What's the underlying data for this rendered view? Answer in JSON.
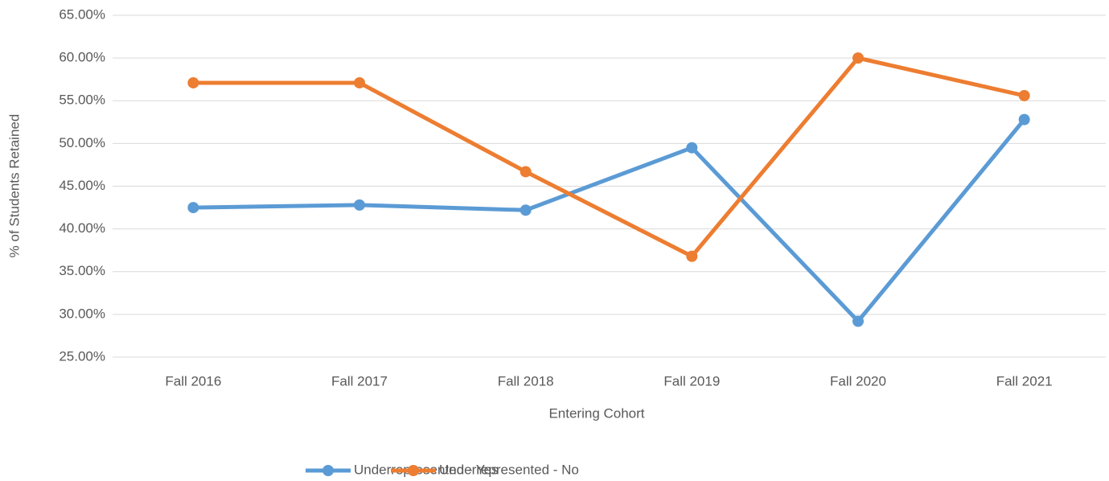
{
  "chart_data": {
    "type": "line",
    "x_label": "Entering Cohort",
    "y_label": "% of Students Retained",
    "categories": [
      "Fall 2016",
      "Fall 2017",
      "Fall 2018",
      "Fall 2019",
      "Fall 2020",
      "Fall 2021"
    ],
    "series": [
      {
        "name": "Underrepresented - Yes",
        "color": "#5b9bd5",
        "values": [
          42.5,
          42.8,
          42.2,
          49.5,
          29.2,
          52.8
        ]
      },
      {
        "name": "Underrepresented - No",
        "color": "#ed7d31",
        "values": [
          57.1,
          57.1,
          46.7,
          36.8,
          60.0,
          55.6
        ]
      }
    ],
    "ylim": [
      25,
      65
    ],
    "yticks": [
      {
        "value": 25,
        "label": "25.00%"
      },
      {
        "value": 30,
        "label": "30.00%"
      },
      {
        "value": 35,
        "label": "35.00%"
      },
      {
        "value": 40,
        "label": "40.00%"
      },
      {
        "value": 45,
        "label": "45.00%"
      },
      {
        "value": 50,
        "label": "50.00%"
      },
      {
        "value": 55,
        "label": "55.00%"
      },
      {
        "value": 60,
        "label": "60.00%"
      },
      {
        "value": 65,
        "label": "65.00%"
      }
    ],
    "grid": true,
    "legend": "bottom"
  }
}
